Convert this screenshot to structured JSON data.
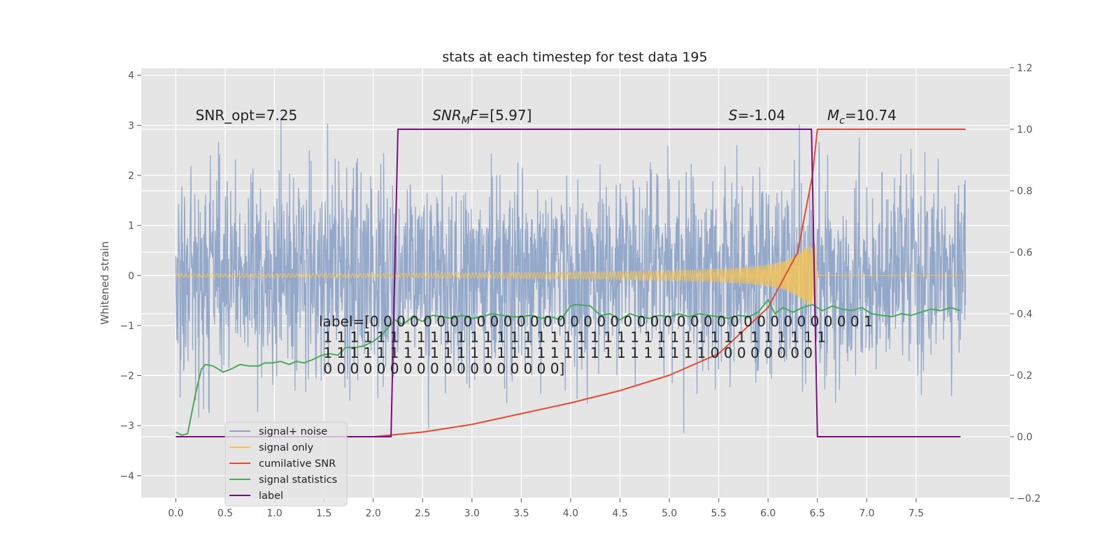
{
  "chart_data": {
    "type": "line",
    "title": "stats at each timestep for test data 195",
    "ylabel": "Whitened strain",
    "xlabel": "",
    "xlim": [
      -0.35,
      8.45
    ],
    "ylim": [
      -4.45,
      4.15
    ],
    "ylim_right": [
      -0.2,
      1.2
    ],
    "grid": true,
    "x_ticks": [
      "0.0",
      "0.5",
      "1.0",
      "1.5",
      "2.0",
      "2.5",
      "3.0",
      "3.5",
      "4.0",
      "4.5",
      "5.0",
      "5.5",
      "6.0",
      "6.5",
      "7.0",
      "7.5"
    ],
    "y_ticks": [
      "−4",
      "−3",
      "−2",
      "−1",
      "0",
      "1",
      "2",
      "3",
      "4"
    ],
    "y_ticks_right": [
      "−0.2",
      "0.0",
      "0.2",
      "0.4",
      "0.6",
      "0.8",
      "1.0",
      "1.2"
    ],
    "annotations": [
      {
        "key": "snr_opt",
        "text": "SNR_opt=7.25",
        "x": 0.2,
        "y": 3.1
      },
      {
        "key": "snr_mf",
        "text": "SNR_MF=[5.97]",
        "x": 2.6,
        "y": 3.1
      },
      {
        "key": "s",
        "text": "S=-1.04",
        "x": 5.6,
        "y": 3.1
      },
      {
        "key": "mc",
        "text": "M_c=10.74",
        "x": 6.6,
        "y": 3.1
      }
    ],
    "label_text": [
      "label=[0 0 0 0 0 0 0 0 0 0 0 0 0 0 0 0 0 0 0 0 0 0 0 0 0 0 0 0 0 0 0 0 0 0 0 0 0 1",
      " 1 1 1 1 1 1 1 1 1 1 1 1 1 1 1 1 1 1 1 1 1 1 1 1 1 1 1 1 1 1 1 1 1 1 1 1 1 1",
      " 1 1 1 1 1 1 1 1 1 1 1 1 1 1 1 1 1 1 1 1 1 1 1 1 1 1 1 1 1 0 0 0 0 0 0 0 0",
      " 0 0 0 0 0 0 0 0 0 0 0 0 0 0 0 0 0 0]"
    ],
    "legend_position": "lower-left",
    "series": [
      {
        "name": "signal+ noise",
        "color": "#8fa4c8",
        "axis": "left",
        "style": "noise",
        "x_range": [
          0.0,
          8.0
        ],
        "amplitude_sd": 1.0
      },
      {
        "name": "signal only",
        "color": "#f2c35a",
        "axis": "left",
        "style": "chirp",
        "x_range": [
          0.0,
          6.5
        ],
        "peak_amplitude": 0.6
      },
      {
        "name": "cumilative SNR",
        "color": "#e24a33",
        "axis": "right",
        "x": [
          0.0,
          0.5,
          1.0,
          1.5,
          2.0,
          2.5,
          3.0,
          3.5,
          4.0,
          4.5,
          5.0,
          5.5,
          6.0,
          6.3,
          6.45,
          6.5,
          7.0,
          7.5,
          8.0
        ],
        "y": [
          0.0,
          0.0,
          0.0,
          0.0,
          0.0,
          0.015,
          0.04,
          0.075,
          0.11,
          0.15,
          0.2,
          0.27,
          0.42,
          0.6,
          0.85,
          1.0,
          1.0,
          1.0,
          1.0
        ]
      },
      {
        "name": "signal statistics",
        "color": "#4aa85a",
        "axis": "right",
        "x": [
          0.0,
          0.06,
          0.12,
          0.2,
          0.26,
          0.3,
          0.38,
          0.48,
          0.56,
          0.65,
          0.74,
          0.84,
          0.9,
          0.98,
          1.06,
          1.15,
          1.22,
          1.3,
          1.38,
          1.48,
          1.56,
          1.64,
          1.72,
          1.82,
          1.9,
          2.0,
          2.08,
          2.14,
          2.22,
          2.3,
          2.4,
          2.5,
          2.6,
          2.7,
          2.8,
          2.9,
          3.0,
          3.1,
          3.2,
          3.3,
          3.4,
          3.5,
          3.6,
          3.7,
          3.8,
          3.9,
          4.0,
          4.05,
          4.2,
          4.3,
          4.4,
          4.5,
          4.6,
          4.7,
          4.8,
          4.9,
          5.0,
          5.1,
          5.2,
          5.3,
          5.4,
          5.5,
          5.6,
          5.7,
          5.8,
          5.9,
          6.0,
          6.07,
          6.15,
          6.25,
          6.35,
          6.45,
          6.55,
          6.65,
          6.75,
          6.85,
          6.95,
          7.05,
          7.15,
          7.25,
          7.35,
          7.45,
          7.55,
          7.65,
          7.75,
          7.85,
          7.95
        ],
        "y": [
          0.015,
          0.005,
          0.01,
          0.14,
          0.22,
          0.235,
          0.23,
          0.21,
          0.22,
          0.235,
          0.23,
          0.23,
          0.24,
          0.24,
          0.245,
          0.235,
          0.245,
          0.24,
          0.25,
          0.265,
          0.27,
          0.265,
          0.29,
          0.29,
          0.295,
          0.31,
          0.33,
          0.35,
          0.38,
          0.365,
          0.39,
          0.375,
          0.395,
          0.39,
          0.385,
          0.395,
          0.385,
          0.39,
          0.4,
          0.395,
          0.39,
          0.39,
          0.395,
          0.385,
          0.39,
          0.38,
          0.425,
          0.43,
          0.425,
          0.395,
          0.4,
          0.38,
          0.4,
          0.39,
          0.385,
          0.395,
          0.39,
          0.4,
          0.39,
          0.4,
          0.395,
          0.39,
          0.385,
          0.395,
          0.39,
          0.405,
          0.445,
          0.4,
          0.42,
          0.405,
          0.42,
          0.43,
          0.41,
          0.425,
          0.415,
          0.41,
          0.42,
          0.4,
          0.395,
          0.39,
          0.4,
          0.395,
          0.405,
          0.415,
          0.41,
          0.42,
          0.41
        ]
      },
      {
        "name": "label",
        "color": "#7b0e7c",
        "axis": "right",
        "x": [
          0.0,
          2.18,
          2.25,
          6.44,
          6.5,
          7.95
        ],
        "y": [
          0.0,
          0.0,
          1.0,
          1.0,
          0.0,
          0.0
        ]
      }
    ]
  }
}
